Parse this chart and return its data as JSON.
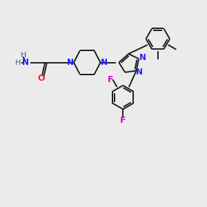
{
  "background_color": "#ebebeb",
  "bond_color": "#1a1a1a",
  "N_color": "#2020ff",
  "O_color": "#ff2020",
  "F_color": "#e000e0",
  "H_color": "#207070",
  "figsize": [
    3.0,
    3.0
  ],
  "dpi": 100,
  "xlim": [
    0,
    10
  ],
  "ylim": [
    0,
    10
  ]
}
